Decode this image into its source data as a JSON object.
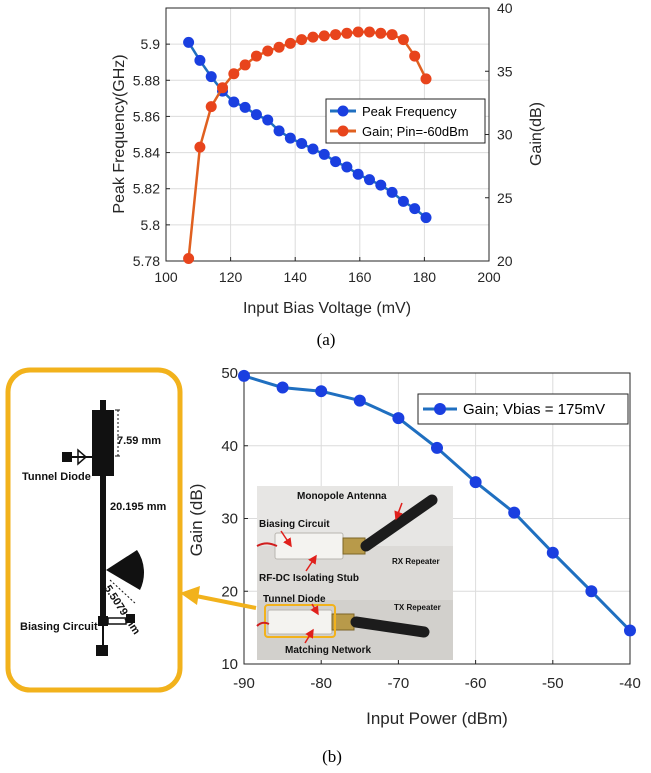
{
  "chart_data": [
    {
      "type": "line",
      "caption": "(a)",
      "xlabel": "Input Bias Voltage (mV)",
      "ylabel": "Peak Frequency(GHz)",
      "y2label": "Gain(dB)",
      "xlim": [
        100,
        200
      ],
      "ylim": [
        5.78,
        5.92
      ],
      "y2lim": [
        20,
        40
      ],
      "xticks": [
        "100",
        "120",
        "140",
        "160",
        "180",
        "200"
      ],
      "yticks": [
        "5.78",
        "5.8",
        "5.82",
        "5.84",
        "5.86",
        "5.88",
        "5.9"
      ],
      "y2ticks": [
        "20",
        "25",
        "30",
        "35",
        "40"
      ],
      "grid": true,
      "legend_position": "center-right",
      "series": [
        {
          "name": "Peak Frequency",
          "axis": "left",
          "color": "#1f6fc0",
          "marker": "#1a3fe0",
          "x": [
            107,
            110.5,
            114,
            117.5,
            121,
            124.5,
            128,
            131.5,
            135,
            138.5,
            142,
            145.5,
            149,
            152.5,
            156,
            159.5,
            163,
            166.5,
            170,
            173.5,
            177,
            180.5
          ],
          "values": [
            5.901,
            5.891,
            5.882,
            5.874,
            5.868,
            5.865,
            5.861,
            5.858,
            5.852,
            5.848,
            5.845,
            5.842,
            5.839,
            5.835,
            5.832,
            5.828,
            5.825,
            5.822,
            5.818,
            5.813,
            5.809,
            5.804
          ]
        },
        {
          "name": "Gain; Pin=-60dBm",
          "axis": "right",
          "color": "#e06020",
          "marker": "#e8441c",
          "x": [
            107,
            110.5,
            114,
            117.5,
            121,
            124.5,
            128,
            131.5,
            135,
            138.5,
            142,
            145.5,
            149,
            152.5,
            156,
            159.5,
            163,
            166.5,
            170,
            173.5,
            177,
            180.5
          ],
          "values": [
            20.2,
            29,
            32.2,
            33.7,
            34.8,
            35.5,
            36.2,
            36.6,
            36.9,
            37.2,
            37.5,
            37.7,
            37.8,
            37.9,
            38,
            38.1,
            38.1,
            38,
            37.9,
            37.5,
            36.2,
            34.4
          ]
        }
      ]
    },
    {
      "type": "line",
      "caption": "(b)",
      "xlabel": "Input Power (dBm)",
      "ylabel": "Gain (dB)",
      "xlim": [
        -90,
        -40
      ],
      "ylim": [
        10,
        50
      ],
      "xticks": [
        "-90",
        "-80",
        "-70",
        "-60",
        "-50",
        "-40"
      ],
      "yticks": [
        "10",
        "20",
        "30",
        "40",
        "50"
      ],
      "grid": true,
      "legend_position": "top-right",
      "series": [
        {
          "name": "Gain; Vbias = 175mV",
          "color": "#1f6fc0",
          "marker": "#1a3fe0",
          "x": [
            -90,
            -85,
            -80,
            -75,
            -70,
            -65,
            -60,
            -55,
            -50,
            -45,
            -40
          ],
          "values": [
            49.6,
            48,
            47.5,
            46.2,
            43.8,
            39.7,
            35,
            30.8,
            25.3,
            20,
            14.6
          ]
        }
      ]
    }
  ],
  "layout_drawing": {
    "labels": [
      "7.59 mm",
      "Tunnel Diode",
      "20.195 mm",
      "5.5079 mm",
      "Biasing Circuit"
    ],
    "border_color": "#f2b21c"
  },
  "photo_inset": {
    "labels": [
      "Monopole Antenna",
      "Biasing Circuit",
      "RX Repeater",
      "RF-DC Isolating Stub",
      "Tunnel Diode",
      "TX Repeater",
      "Matching Network"
    ]
  }
}
